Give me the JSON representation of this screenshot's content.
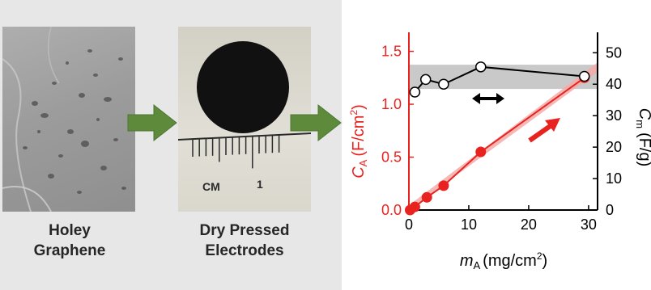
{
  "panels": {
    "graphene": {
      "caption_line1": "Holey",
      "caption_line2": "Graphene"
    },
    "electrodes": {
      "caption_line1": "Dry Pressed",
      "caption_line2": "Electrodes",
      "ruler_unit": "CM",
      "ruler_number": "1"
    }
  },
  "colors": {
    "left_axis": "#e8231f",
    "right_axis": "#000000",
    "band_red": "#f4aaa8",
    "band_gray": "#c9c9c9",
    "flow_arrow": "#5e8a3b"
  },
  "chart_data": {
    "type": "scatter",
    "x_axis": {
      "label_symbol": "m",
      "label_sub": "A",
      "label_unit": "(mg/cm",
      "label_sup": "2",
      "label_close": ")",
      "ticks": [
        0,
        10,
        20,
        30
      ],
      "range": [
        0,
        31.5
      ]
    },
    "y_left": {
      "label_symbol": "C",
      "label_sub": "A",
      "label_unit": "(F/cm",
      "label_sup": "2",
      "label_close": ")",
      "ticks": [
        "0.0",
        "0.5",
        "1.0",
        "1.5"
      ],
      "range": [
        0,
        1.68
      ]
    },
    "y_right": {
      "label_symbol": "C",
      "label_sub": "m",
      "label_unit": "(F/g)",
      "ticks": [
        0,
        10,
        20,
        30,
        40,
        50
      ],
      "range": [
        0,
        56.5
      ]
    },
    "series": [
      {
        "axis": "left",
        "color": "#e8231f",
        "marker": "filled-circle",
        "x": [
          0.2,
          1.0,
          3.0,
          5.8,
          12.0,
          29.3
        ],
        "y": [
          0.0,
          0.03,
          0.12,
          0.23,
          0.55,
          1.25
        ]
      },
      {
        "axis": "right",
        "color": "#000000",
        "marker": "open-circle",
        "x": [
          1.0,
          2.8,
          5.8,
          12.0,
          29.3
        ],
        "y": [
          37.5,
          41.5,
          40.0,
          45.5,
          42.5
        ]
      }
    ],
    "bands": [
      {
        "axis": "right",
        "from": 38.5,
        "to": 46.2,
        "color": "#c9c9c9"
      },
      {
        "axis": "left",
        "line_from": [
          0,
          0.0
        ],
        "line_to": [
          31.5,
          1.35
        ],
        "halfwidth": 0.045,
        "color": "#f4aaa8"
      }
    ],
    "annotations": [
      {
        "type": "double-arrow",
        "color": "#000000"
      },
      {
        "type": "arrow",
        "color": "#e8231f"
      }
    ]
  }
}
